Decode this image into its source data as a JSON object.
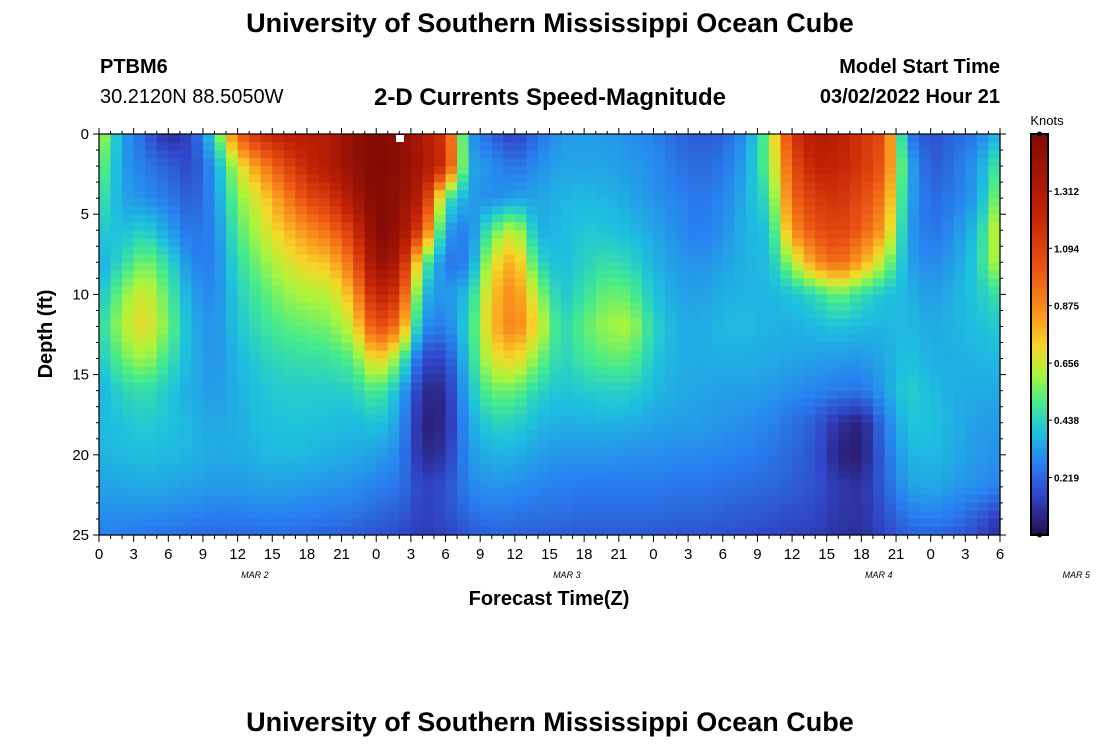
{
  "header": {
    "title": "University of Southern Mississippi Ocean Cube",
    "station_name": "PTBM6",
    "station_coords": "30.2120N  88.5050W",
    "product_title": "2-D Currents Speed-Magnitude",
    "start_label": "Model Start Time",
    "start_value": "03/02/2022 Hour 21"
  },
  "footer": {
    "title": "University of Southern Mississippi Ocean Cube"
  },
  "chart_data": {
    "type": "heatmap",
    "xlabel": "Forecast Time(Z)",
    "ylabel": "Depth (ft)",
    "colorbar_label": "Knots",
    "colorbar_ticks": [
      "0.219",
      "0.438",
      "0.656",
      "0.875",
      "1.094",
      "1.312"
    ],
    "colorbar_range": [
      0,
      1.53
    ],
    "x_tick_labels": [
      "0",
      "3",
      "6",
      "9",
      "12",
      "15",
      "18",
      "21",
      "0",
      "3",
      "6",
      "9",
      "12",
      "15",
      "18",
      "21",
      "0",
      "3",
      "6",
      "9",
      "12",
      "15",
      "18",
      "21",
      "0",
      "3",
      "6"
    ],
    "date_labels": [
      {
        "label": "MAR 2",
        "tick_index": 4.5
      },
      {
        "label": "MAR 3",
        "tick_index": 13.5
      },
      {
        "label": "MAR 4",
        "tick_index": 22.5
      },
      {
        "label": "MAR 5",
        "tick_index": 28.2
      }
    ],
    "y_ticks": [
      0,
      5,
      10,
      15,
      20,
      25
    ],
    "ylim": [
      0,
      25
    ],
    "x_hours_range": [
      0,
      78
    ],
    "speed_field_knots": {
      "depths_ft": [
        0,
        2,
        4,
        6,
        8,
        10,
        12,
        14,
        16,
        18,
        20,
        22,
        24,
        25
      ],
      "hours": [
        0,
        2,
        4,
        6,
        8,
        10,
        12,
        14,
        16,
        18,
        20,
        22,
        24,
        26,
        28,
        30,
        32,
        34,
        36,
        38,
        40,
        42,
        44,
        46,
        48,
        50,
        52,
        54,
        56,
        58,
        60,
        62,
        64,
        66,
        68,
        70,
        72,
        74,
        76,
        78
      ],
      "values": [
        [
          0.66,
          0.33,
          0.21,
          0.08,
          0.15,
          0.45,
          0.98,
          1.19,
          1.26,
          1.29,
          1.31,
          1.45,
          1.53,
          1.47,
          1.33,
          1.14,
          0.33,
          0.21,
          0.13,
          0.24,
          0.32,
          0.33,
          0.32,
          0.3,
          0.28,
          0.22,
          0.19,
          0.21,
          0.31,
          0.57,
          1.14,
          1.31,
          1.28,
          1.14,
          1.04,
          0.26,
          0.17,
          0.22,
          0.26,
          0.39
        ],
        [
          0.57,
          0.33,
          0.26,
          0.21,
          0.15,
          0.32,
          0.66,
          0.87,
          1.06,
          1.22,
          1.31,
          1.45,
          1.53,
          1.49,
          1.35,
          1.17,
          0.35,
          0.3,
          0.24,
          0.3,
          0.34,
          0.34,
          0.34,
          0.32,
          0.3,
          0.25,
          0.22,
          0.25,
          0.34,
          0.55,
          1.04,
          1.24,
          1.22,
          1.14,
          1.0,
          0.37,
          0.19,
          0.24,
          0.32,
          0.52
        ],
        [
          0.5,
          0.34,
          0.3,
          0.26,
          0.19,
          0.3,
          0.57,
          0.7,
          0.88,
          1.06,
          1.14,
          1.35,
          1.53,
          1.45,
          1.26,
          0.5,
          0.33,
          0.29,
          0.33,
          0.34,
          0.37,
          0.38,
          0.37,
          0.34,
          0.31,
          0.28,
          0.25,
          0.28,
          0.36,
          0.47,
          0.96,
          1.12,
          1.16,
          1.06,
          0.91,
          0.35,
          0.22,
          0.26,
          0.33,
          0.61
        ],
        [
          0.42,
          0.39,
          0.43,
          0.33,
          0.24,
          0.28,
          0.51,
          0.64,
          0.76,
          0.86,
          0.95,
          1.14,
          1.53,
          1.45,
          1.06,
          0.33,
          0.26,
          0.52,
          0.66,
          0.35,
          0.38,
          0.41,
          0.4,
          0.38,
          0.34,
          0.3,
          0.26,
          0.3,
          0.37,
          0.4,
          0.86,
          1.03,
          1.09,
          0.99,
          0.82,
          0.33,
          0.24,
          0.3,
          0.39,
          0.7
        ],
        [
          0.35,
          0.45,
          0.57,
          0.45,
          0.28,
          0.27,
          0.46,
          0.57,
          0.66,
          0.73,
          0.76,
          0.97,
          1.45,
          1.33,
          0.56,
          0.25,
          0.27,
          0.68,
          0.82,
          0.45,
          0.38,
          0.43,
          0.47,
          0.44,
          0.37,
          0.32,
          0.3,
          0.33,
          0.37,
          0.38,
          0.61,
          0.86,
          0.97,
          0.82,
          0.61,
          0.34,
          0.28,
          0.33,
          0.42,
          0.66
        ],
        [
          0.38,
          0.57,
          0.68,
          0.52,
          0.33,
          0.28,
          0.42,
          0.51,
          0.58,
          0.62,
          0.63,
          0.8,
          1.26,
          1.14,
          0.38,
          0.3,
          0.4,
          0.75,
          0.89,
          0.6,
          0.4,
          0.47,
          0.55,
          0.53,
          0.4,
          0.34,
          0.33,
          0.36,
          0.37,
          0.37,
          0.4,
          0.45,
          0.55,
          0.46,
          0.4,
          0.37,
          0.32,
          0.36,
          0.41,
          0.48
        ],
        [
          0.44,
          0.62,
          0.72,
          0.55,
          0.36,
          0.3,
          0.4,
          0.47,
          0.52,
          0.54,
          0.56,
          0.67,
          1.06,
          0.92,
          0.3,
          0.26,
          0.44,
          0.77,
          0.91,
          0.69,
          0.44,
          0.53,
          0.6,
          0.62,
          0.44,
          0.36,
          0.35,
          0.38,
          0.38,
          0.37,
          0.36,
          0.38,
          0.4,
          0.38,
          0.37,
          0.38,
          0.35,
          0.37,
          0.39,
          0.42
        ],
        [
          0.4,
          0.54,
          0.61,
          0.48,
          0.36,
          0.3,
          0.37,
          0.43,
          0.46,
          0.47,
          0.48,
          0.52,
          0.76,
          0.56,
          0.16,
          0.15,
          0.42,
          0.68,
          0.74,
          0.56,
          0.43,
          0.49,
          0.53,
          0.53,
          0.41,
          0.36,
          0.35,
          0.36,
          0.36,
          0.35,
          0.34,
          0.33,
          0.32,
          0.31,
          0.35,
          0.4,
          0.36,
          0.36,
          0.37,
          0.38
        ],
        [
          0.36,
          0.44,
          0.47,
          0.41,
          0.35,
          0.32,
          0.36,
          0.4,
          0.42,
          0.42,
          0.42,
          0.43,
          0.52,
          0.38,
          0.08,
          0.08,
          0.38,
          0.55,
          0.54,
          0.44,
          0.4,
          0.42,
          0.43,
          0.43,
          0.38,
          0.35,
          0.34,
          0.33,
          0.33,
          0.32,
          0.3,
          0.28,
          0.26,
          0.25,
          0.33,
          0.43,
          0.39,
          0.36,
          0.35,
          0.35
        ],
        [
          0.38,
          0.4,
          0.42,
          0.4,
          0.37,
          0.34,
          0.36,
          0.39,
          0.4,
          0.4,
          0.39,
          0.38,
          0.41,
          0.33,
          0.05,
          0.07,
          0.34,
          0.44,
          0.43,
          0.38,
          0.36,
          0.36,
          0.37,
          0.36,
          0.34,
          0.33,
          0.33,
          0.31,
          0.3,
          0.28,
          0.24,
          0.2,
          0.1,
          0.05,
          0.26,
          0.4,
          0.4,
          0.36,
          0.33,
          0.32
        ],
        [
          0.37,
          0.38,
          0.39,
          0.38,
          0.37,
          0.35,
          0.35,
          0.37,
          0.38,
          0.38,
          0.36,
          0.35,
          0.33,
          0.29,
          0.07,
          0.11,
          0.31,
          0.37,
          0.36,
          0.33,
          0.31,
          0.31,
          0.31,
          0.3,
          0.3,
          0.29,
          0.29,
          0.28,
          0.27,
          0.25,
          0.22,
          0.18,
          0.06,
          0.04,
          0.23,
          0.37,
          0.38,
          0.35,
          0.32,
          0.3
        ],
        [
          0.33,
          0.34,
          0.35,
          0.34,
          0.33,
          0.32,
          0.32,
          0.33,
          0.33,
          0.32,
          0.31,
          0.3,
          0.27,
          0.25,
          0.14,
          0.17,
          0.28,
          0.31,
          0.3,
          0.28,
          0.27,
          0.26,
          0.26,
          0.26,
          0.26,
          0.25,
          0.25,
          0.24,
          0.23,
          0.22,
          0.2,
          0.18,
          0.12,
          0.1,
          0.21,
          0.33,
          0.35,
          0.32,
          0.3,
          0.27
        ],
        [
          0.3,
          0.29,
          0.29,
          0.28,
          0.27,
          0.26,
          0.26,
          0.27,
          0.27,
          0.26,
          0.25,
          0.24,
          0.21,
          0.19,
          0.13,
          0.16,
          0.22,
          0.25,
          0.24,
          0.23,
          0.23,
          0.22,
          0.22,
          0.22,
          0.22,
          0.21,
          0.21,
          0.2,
          0.19,
          0.18,
          0.16,
          0.15,
          0.11,
          0.1,
          0.17,
          0.25,
          0.27,
          0.25,
          0.2,
          0.12
        ],
        [
          0.27,
          0.26,
          0.25,
          0.24,
          0.23,
          0.22,
          0.22,
          0.23,
          0.23,
          0.22,
          0.21,
          0.2,
          0.18,
          0.16,
          0.12,
          0.14,
          0.19,
          0.21,
          0.21,
          0.2,
          0.2,
          0.19,
          0.19,
          0.19,
          0.19,
          0.18,
          0.18,
          0.17,
          0.16,
          0.15,
          0.14,
          0.13,
          0.1,
          0.09,
          0.15,
          0.21,
          0.22,
          0.2,
          0.16,
          0.09
        ]
      ]
    }
  }
}
